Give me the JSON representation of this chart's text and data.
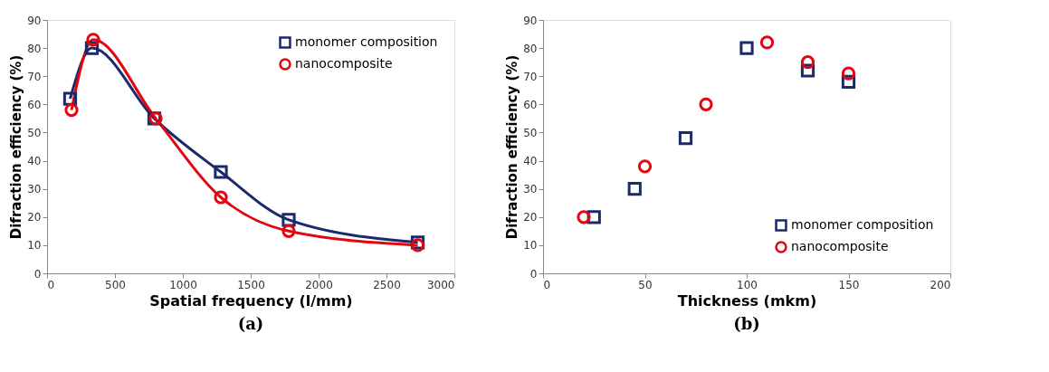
{
  "chart_data": [
    {
      "type": "line",
      "xlabel": "Spatial frequency (l/mm)",
      "ylabel": "Difraction efficiency  (%)",
      "annotations": [
        "(a)"
      ],
      "xlim": [
        0,
        3000
      ],
      "xticks": [
        0,
        500,
        1000,
        1500,
        2000,
        2500,
        3000
      ],
      "ylim": [
        0,
        90
      ],
      "yticks": [
        0,
        10,
        20,
        30,
        40,
        50,
        60,
        70,
        80,
        90
      ],
      "grid": false,
      "legend": "top right",
      "line_style": "solid",
      "series": [
        {
          "name": "monomer composition",
          "color": "#1b2a6b",
          "marker": "square",
          "x": [
            170,
            330,
            790,
            1280,
            1780,
            2730
          ],
          "values": [
            62,
            80,
            55,
            36,
            19,
            11
          ]
        },
        {
          "name": "nanocomposite",
          "color": "#e3060f",
          "marker": "circle",
          "x": [
            180,
            340,
            800,
            1280,
            1780,
            2730
          ],
          "values": [
            58,
            83,
            55,
            27,
            15,
            10
          ]
        }
      ]
    },
    {
      "type": "scatter",
      "xlabel": "Thickness (mkm)",
      "ylabel": "Difraction efficiency (%)",
      "annotations": [
        "(b)"
      ],
      "xlim": [
        0,
        200
      ],
      "xticks": [
        0,
        50,
        100,
        150,
        200
      ],
      "ylim": [
        0,
        90
      ],
      "yticks": [
        0,
        10,
        20,
        30,
        40,
        50,
        60,
        70,
        80,
        90
      ],
      "grid": false,
      "legend": "bottom right",
      "series": [
        {
          "name": "monomer composition",
          "color": "#1b2a6b",
          "marker": "square",
          "x": [
            25,
            45,
            70,
            100,
            130,
            150
          ],
          "values": [
            20,
            30,
            48,
            80,
            72,
            68
          ]
        },
        {
          "name": "nanocomposite",
          "color": "#e3060f",
          "marker": "circle",
          "x": [
            20,
            50,
            80,
            110,
            130,
            150
          ],
          "values": [
            20,
            38,
            60,
            82,
            75,
            71
          ]
        }
      ]
    }
  ]
}
